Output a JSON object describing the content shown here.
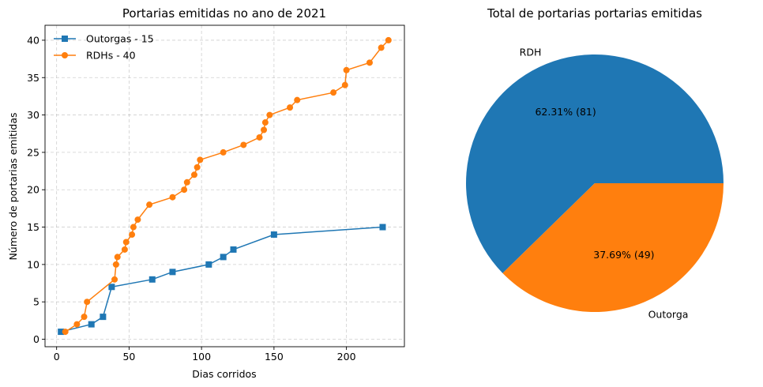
{
  "chart_data": [
    {
      "type": "line",
      "title": "Portarias emitidas no ano de 2021",
      "xlabel": "Dias corridos",
      "ylabel": "Número de portarias emitidas",
      "xlim": [
        -8,
        240
      ],
      "ylim": [
        -1,
        42
      ],
      "xticks": [
        0,
        50,
        100,
        150,
        200
      ],
      "yticks": [
        0,
        5,
        10,
        15,
        20,
        25,
        30,
        35,
        40
      ],
      "grid": true,
      "legend_position": "upper-left",
      "series": [
        {
          "name": "Outorgas - 15",
          "color": "#1f77b4",
          "marker": "square",
          "x": [
            3,
            24,
            32,
            38,
            66,
            80,
            105,
            115,
            122,
            150,
            225
          ],
          "y": [
            1,
            2,
            3,
            7,
            8,
            9,
            10,
            11,
            12,
            14,
            15
          ]
        },
        {
          "name": "RDHs - 40",
          "color": "#ff7f0e",
          "marker": "circle",
          "x": [
            6,
            14,
            19,
            21,
            40,
            41,
            42,
            47,
            48,
            52,
            53,
            56,
            64,
            80,
            88,
            90,
            95,
            97,
            99,
            115,
            129,
            140,
            143,
            144,
            147,
            161,
            166,
            191,
            199,
            200,
            216,
            224,
            229
          ],
          "y": [
            1,
            2,
            3,
            5,
            8,
            10,
            11,
            12,
            13,
            14,
            15,
            16,
            18,
            19,
            20,
            21,
            22,
            23,
            24,
            25,
            26,
            27,
            28,
            29,
            30,
            31,
            32,
            33,
            34,
            36,
            37,
            39,
            40
          ]
        }
      ]
    },
    {
      "type": "pie",
      "title": "Total de portarias portarias emitidas",
      "slices": [
        {
          "label": "RDH",
          "value": 81,
          "percent_label": "62.31%  (81)",
          "color": "#1f77b4"
        },
        {
          "label": "Outorga",
          "value": 49,
          "percent_label": "37.69%  (49)",
          "color": "#ff7f0e"
        }
      ]
    }
  ]
}
